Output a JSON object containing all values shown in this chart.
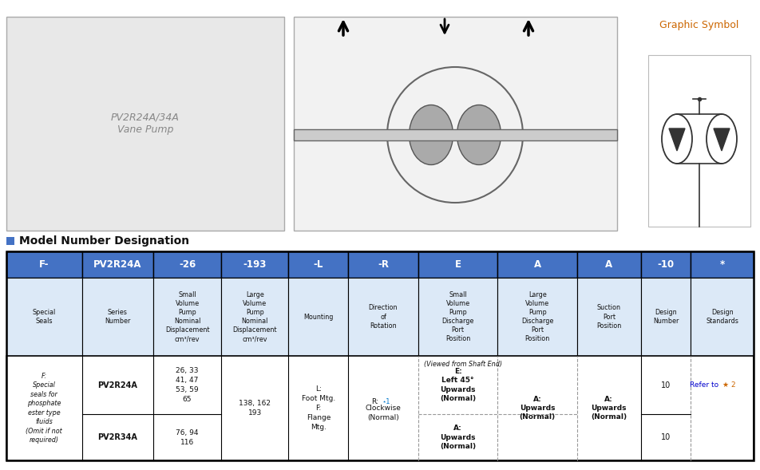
{
  "title": "Model Number Designation",
  "title_square_color": "#4472c4",
  "graphic_symbol_label": "Graphic Symbol",
  "graphic_symbol_color": "#cc6600",
  "header_row": [
    "F-",
    "PV2R24A",
    "-26",
    "-193",
    "-L",
    "-R",
    "E",
    "A",
    "A",
    "-10",
    "*"
  ],
  "header_bg": "#4472c4",
  "header_text_color": "#ffffff",
  "subheader_bg": "#dce9f7",
  "subheader_texts": [
    "Special\nSeals",
    "Series\nNumber",
    "Small\nVolume\nPump\nNominal\nDisplacement\ncm³/rev",
    "Large\nVolume\nPump\nNominal\nDisplacement\ncm³/rev",
    "Mounting",
    "Direction\nof\nRotation",
    "Small\nVolume\nPump\nDischarge\nPort\nPosition",
    "Large\nVolume\nPump\nDischarge\nPort\nPosition",
    "Suction\nPort\nPosition",
    "Design\nNumber",
    "Design\nStandards"
  ],
  "col1_text": "F:\nSpecial\nseals for\nphosphate\nester type\nfluids\n(Omit if not\nrequired)",
  "col2_row1": "PV2R24A",
  "col2_row2": "PV2R34A",
  "col3_row1": "26, 33\n41, 47\n53, 59\n65",
  "col3_row2": "76, 94\n116",
  "col4_data": "138, 162\n193",
  "col5_data": "L:\nFoot Mtg.\nF:\nFlange\nMtg.",
  "col6_label": "R:",
  "col6_star": "⋆1",
  "col6_rest": "Clockwise\n(Normal)",
  "col6_span": "(Viewed from Shaft End)",
  "col7_row1": "E:\nLeft 45°\nUpwards\n(Normal)",
  "col7_row2": "A:\nUpwards\n(Normal)",
  "col8_data": "A:\nUpwards\n(Normal)",
  "col9_data": "A:\nUpwards\n(Normal)",
  "col10_row1": "10",
  "col10_row2": "10",
  "col11_refer": "Refer to ",
  "col11_star": "★ 2",
  "col11_text_color": "#0000cc",
  "star_color": "#cc6600",
  "fig_bg": "#ffffff"
}
